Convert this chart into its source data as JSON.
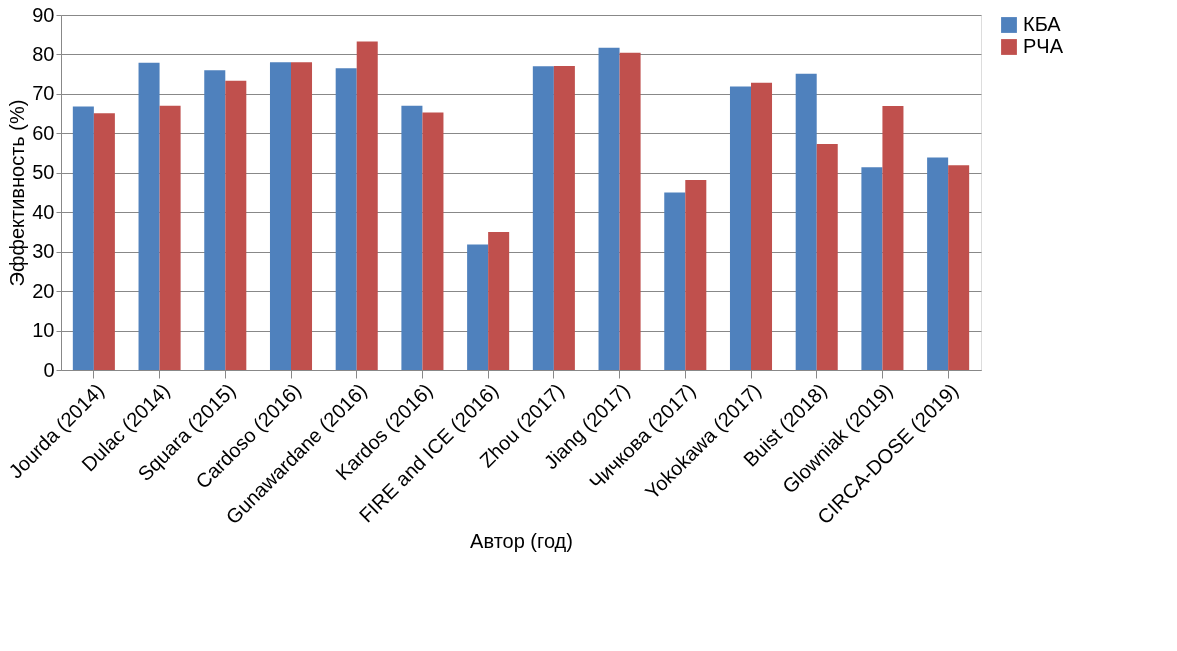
{
  "chart_data": {
    "type": "bar",
    "xlabel": "Автор (год)",
    "ylabel": "Эффективность (%)",
    "categories": [
      "Jourda (2014)",
      "Dulac (2014)",
      "Squara (2015)",
      "Cardoso (2016)",
      "Gunawardane (2016)",
      "Kardos (2016)",
      "FIRE and ICE (2016)",
      "Zhou (2017)",
      "Jiang (2017)",
      "Чичкова (2017)",
      "Yokokawa (2017)",
      "Buist (2018)",
      "Glowniak (2019)",
      "CIRCA-DOSE (2019)"
    ],
    "series": [
      {
        "name": "КБА",
        "color": "#4f81bd",
        "values": [
          66.8,
          77.9,
          76,
          78,
          76.5,
          67,
          31.8,
          77,
          81.7,
          45,
          71.9,
          75.1,
          51.4,
          53.9
        ]
      },
      {
        "name": "РЧА",
        "color": "#c0504d",
        "values": [
          65.1,
          67,
          73.3,
          78,
          83.3,
          65.3,
          35,
          77.1,
          80.4,
          48.2,
          72.8,
          57.3,
          66.9,
          51.9
        ]
      }
    ],
    "ylim": [
      0,
      90
    ],
    "yticks": [
      0,
      10,
      20,
      30,
      40,
      50,
      60,
      70,
      80,
      90
    ],
    "grid": "y",
    "legend": "right"
  }
}
